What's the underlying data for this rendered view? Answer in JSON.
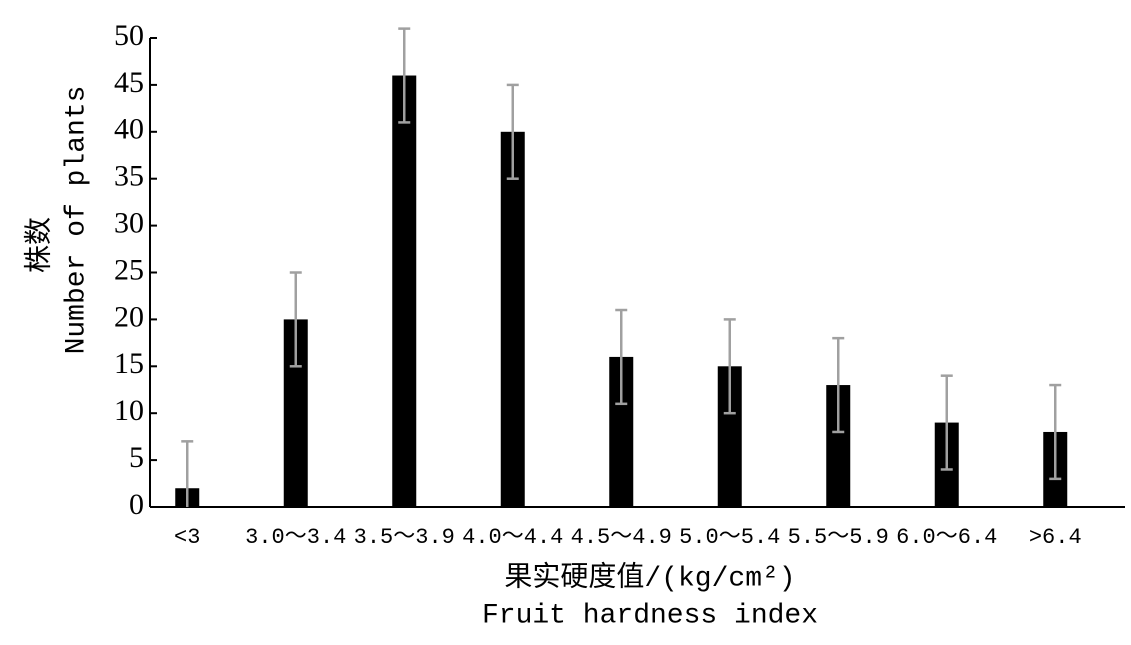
{
  "chart_data": {
    "type": "bar",
    "y_label": "株数",
    "y_label_en": "Number of plants",
    "x_label": "果实硬度值/(kg/cm²)",
    "x_label_en": "Fruit hardness index",
    "categories": [
      "<3",
      "3.0～3.4",
      "3.5～3.9",
      "4.0～4.4",
      "4.5～4.9",
      "5.0～5.4",
      "5.5～5.9",
      "6.0～6.4",
      ">6.4"
    ],
    "values": [
      2,
      20,
      46,
      40,
      16,
      15,
      13,
      9,
      8
    ],
    "errors": [
      5,
      5,
      5,
      5,
      5,
      5,
      5,
      5,
      5
    ],
    "color": "#000000",
    "error_color": "#a0a0a0",
    "ylim": [
      0,
      50
    ],
    "yticks": [
      0,
      5,
      10,
      15,
      20,
      25,
      30,
      35,
      40,
      45,
      50
    ],
    "grid": false
  }
}
